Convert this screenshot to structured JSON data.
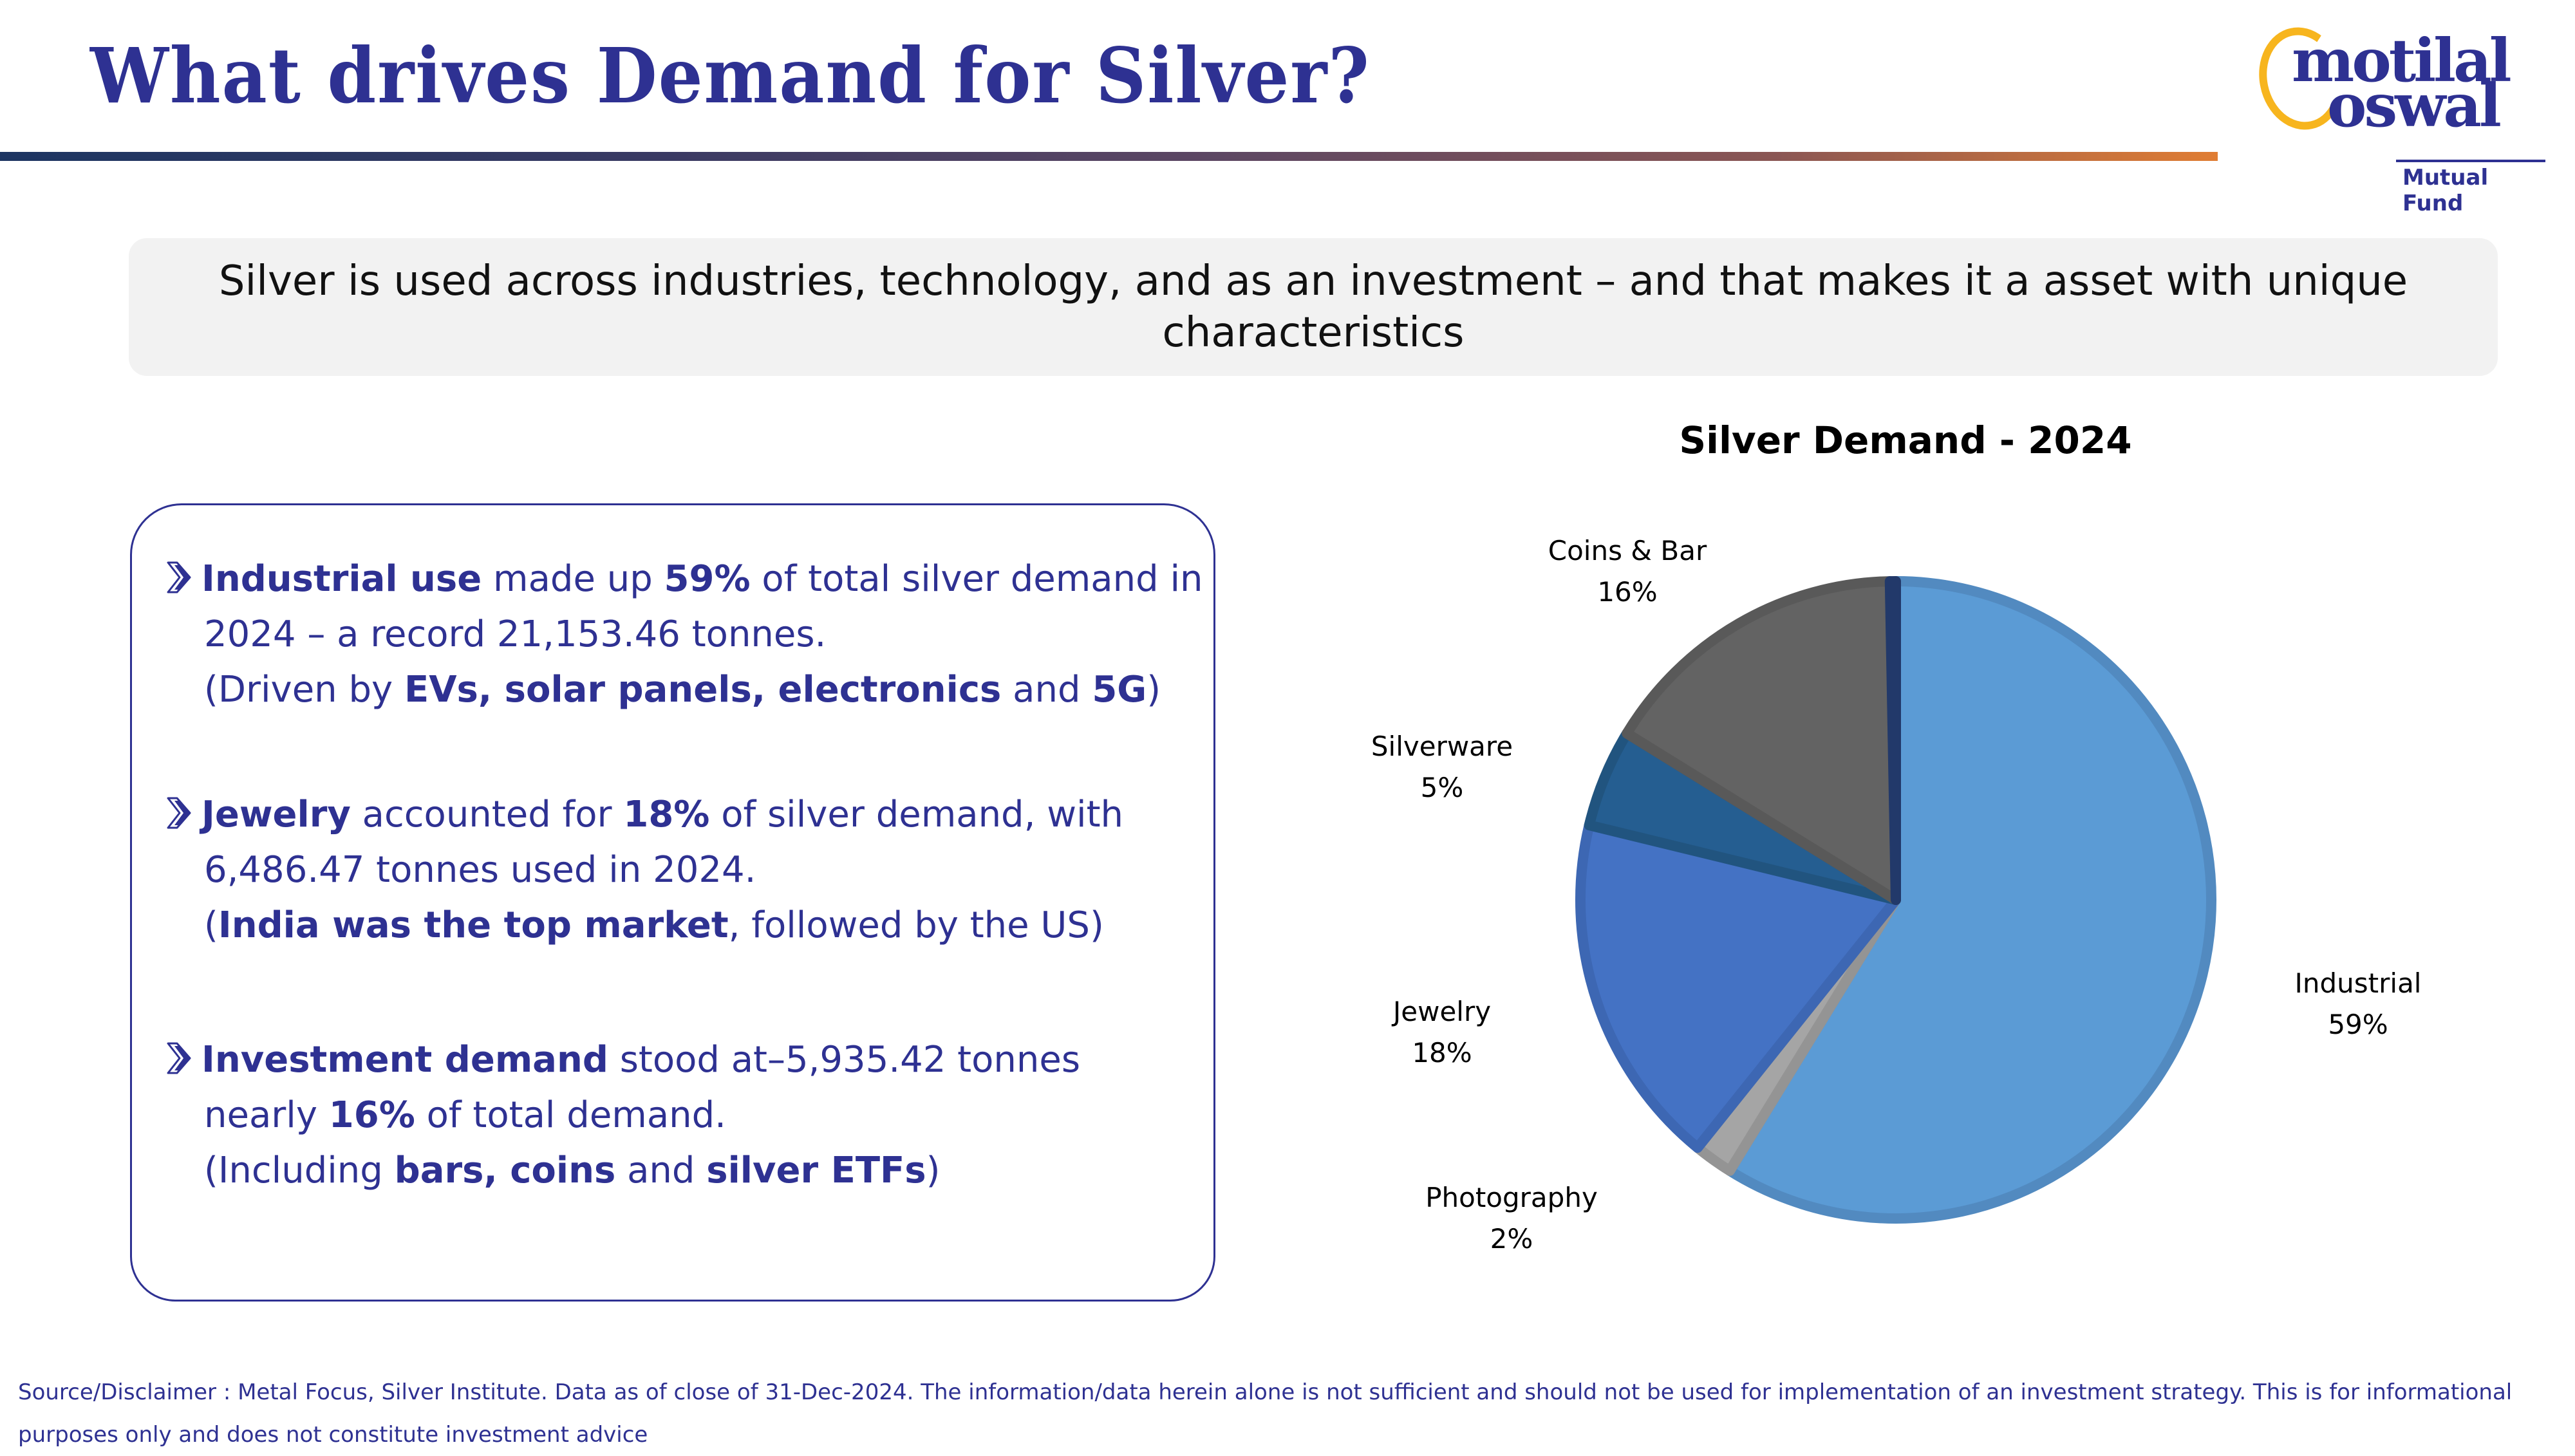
{
  "header": {
    "title": "What drives Demand for Silver?",
    "logo": {
      "line1": "motilal",
      "line2": "oswal",
      "subtitle": "Mutual Fund"
    }
  },
  "banner": {
    "text": "Silver is used across industries, technology, and as an investment – and that makes it a asset with unique characteristics"
  },
  "bullets": [
    {
      "icon": "chevron-right-icon",
      "lines": [
        [
          {
            "t": "Industrial use",
            "b": true
          },
          {
            "t": " made up ",
            "b": false
          },
          {
            "t": "59%",
            "b": true
          },
          {
            "t": " of total silver demand in",
            "b": false
          }
        ],
        [
          {
            "t": "2024 – a record 21,153.46 tonnes.",
            "b": false
          }
        ],
        [
          {
            "t": "(Driven by ",
            "b": false
          },
          {
            "t": "EVs, solar panels, electronics",
            "b": true
          },
          {
            "t": " and ",
            "b": false
          },
          {
            "t": "5G",
            "b": true
          },
          {
            "t": ")",
            "b": false
          }
        ]
      ]
    },
    {
      "icon": "chevron-right-icon",
      "lines": [
        [
          {
            "t": "Jewelry",
            "b": true
          },
          {
            "t": " accounted for ",
            "b": false
          },
          {
            "t": "18%",
            "b": true
          },
          {
            "t": " of silver demand, with",
            "b": false
          }
        ],
        [
          {
            "t": "6,486.47 tonnes used in 2024.",
            "b": false
          }
        ],
        [
          {
            "t": "(",
            "b": false
          },
          {
            "t": "India was the top market",
            "b": true
          },
          {
            "t": ", followed by the US)",
            "b": false
          }
        ]
      ]
    },
    {
      "icon": "chevron-right-icon",
      "lines": [
        [
          {
            "t": "Investment demand",
            "b": true
          },
          {
            "t": " stood at–5,935.42 tonnes",
            "b": false
          }
        ],
        [
          {
            "t": "nearly ",
            "b": false
          },
          {
            "t": "16%",
            "b": true
          },
          {
            "t": " of total demand.",
            "b": false
          }
        ],
        [
          {
            "t": "(Including ",
            "b": false
          },
          {
            "t": "bars, coins",
            "b": true
          },
          {
            "t": " and ",
            "b": false
          },
          {
            "t": "silver ETFs",
            "b": true
          },
          {
            "t": ")",
            "b": false
          }
        ]
      ]
    }
  ],
  "chart_data": {
    "type": "pie",
    "title": "Silver Demand - 2024",
    "start_angle_deg": 0,
    "direction": "clockwise",
    "slices": [
      {
        "label": "Industrial",
        "value": 59,
        "value_label": "59%",
        "color": "#5b9bd5",
        "stroke": "#528ac0"
      },
      {
        "label": "Photography",
        "value": 2,
        "value_label": "2%",
        "color": "#a5a5a5",
        "stroke": "#949494"
      },
      {
        "label": "Jewelry",
        "value": 18,
        "value_label": "18%",
        "color": "#4472c4",
        "stroke": "#3d67b3"
      },
      {
        "label": "Silverware",
        "value": 5,
        "value_label": "5%",
        "color": "#255e91",
        "stroke": "#21547f"
      },
      {
        "label": "Coins & Bar",
        "value": 16,
        "value_label": "16%",
        "color": "#636363",
        "stroke": "#595959"
      },
      {
        "label": "",
        "value": 0.3,
        "value_label": "",
        "color": "#264478",
        "stroke": "#22396a"
      }
    ],
    "legend": "none",
    "data_labels": "outside"
  },
  "footer": {
    "line1": "Source/Disclaimer : Metal Focus, Silver Institute. Data as of close of 31-Dec-2024. The information/data herein alone is not sufficient and should not be used for implementation of an investment strategy. This is for informational",
    "line2": "purposes only and does not constitute investment advice"
  },
  "colors": {
    "brand_navy": "#2e3192",
    "brand_yellow": "#f7b51e",
    "banner_bg": "#f2f2f2"
  }
}
